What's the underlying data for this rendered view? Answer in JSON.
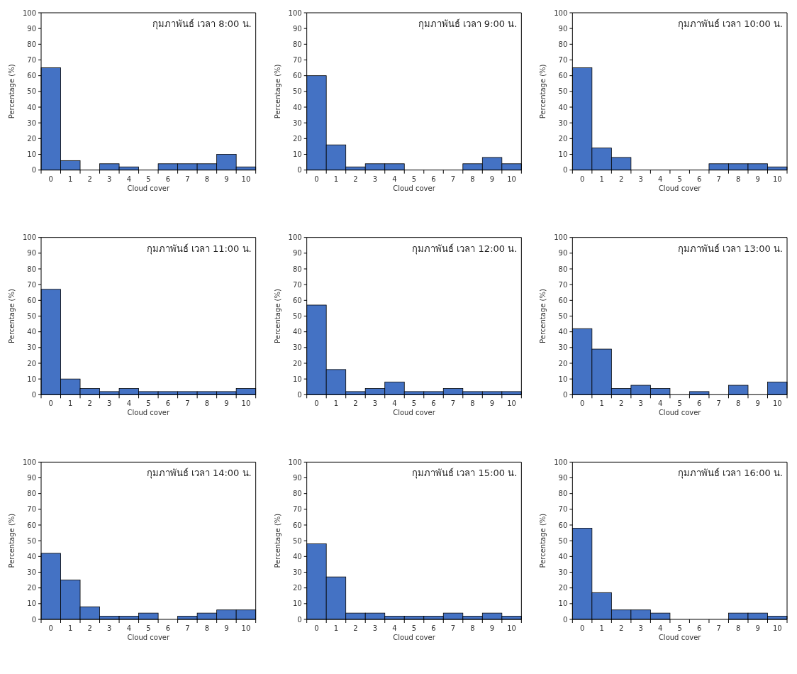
{
  "chart_data": [
    {
      "type": "bar",
      "title": "กุมภาพันธ์ เวลา 8:00 น.",
      "xlabel": "Cloud cover",
      "ylabel": "Percentage (%)",
      "categories": [
        "0",
        "1",
        "2",
        "3",
        "4",
        "5",
        "6",
        "7",
        "8",
        "9",
        "10"
      ],
      "values": [
        65,
        6,
        0,
        4,
        2,
        0,
        4,
        4,
        4,
        10,
        2
      ],
      "color": "#4472c4",
      "ylim": [
        0,
        100
      ],
      "yticks": [
        0,
        10,
        20,
        30,
        40,
        50,
        60,
        70,
        80,
        90,
        100
      ]
    },
    {
      "type": "bar",
      "title": "กุมภาพันธ์ เวลา 9:00 น.",
      "xlabel": "Cloud cover",
      "ylabel": "Percentage (%)",
      "categories": [
        "0",
        "1",
        "2",
        "3",
        "4",
        "5",
        "6",
        "7",
        "8",
        "9",
        "10"
      ],
      "values": [
        60,
        16,
        2,
        4,
        4,
        0,
        0,
        0,
        4,
        8,
        4
      ],
      "color": "#4472c4",
      "ylim": [
        0,
        100
      ],
      "yticks": [
        0,
        10,
        20,
        30,
        40,
        50,
        60,
        70,
        80,
        90,
        100
      ]
    },
    {
      "type": "bar",
      "title": "กุมภาพันธ์ เวลา 10:00 น.",
      "xlabel": "Cloud cover",
      "ylabel": "Percentage (%)",
      "categories": [
        "0",
        "1",
        "2",
        "3",
        "4",
        "5",
        "6",
        "7",
        "8",
        "9",
        "10"
      ],
      "values": [
        65,
        14,
        8,
        0,
        0,
        0,
        0,
        4,
        4,
        4,
        2
      ],
      "color": "#4472c4",
      "ylim": [
        0,
        100
      ],
      "yticks": [
        0,
        10,
        20,
        30,
        40,
        50,
        60,
        70,
        80,
        90,
        100
      ]
    },
    {
      "type": "bar",
      "title": "กุมภาพันธ์ เวลา 11:00 น.",
      "xlabel": "Cloud cover",
      "ylabel": "Percentage (%)",
      "categories": [
        "0",
        "1",
        "2",
        "3",
        "4",
        "5",
        "6",
        "7",
        "8",
        "9",
        "10"
      ],
      "values": [
        67,
        10,
        4,
        2,
        4,
        2,
        2,
        2,
        2,
        2,
        4
      ],
      "color": "#4472c4",
      "ylim": [
        0,
        100
      ],
      "yticks": [
        0,
        10,
        20,
        30,
        40,
        50,
        60,
        70,
        80,
        90,
        100
      ]
    },
    {
      "type": "bar",
      "title": "กุมภาพันธ์ เวลา 12:00 น.",
      "xlabel": "Cloud cover",
      "ylabel": "Percentage (%)",
      "categories": [
        "0",
        "1",
        "2",
        "3",
        "4",
        "5",
        "6",
        "7",
        "8",
        "9",
        "10"
      ],
      "values": [
        57,
        16,
        2,
        4,
        8,
        2,
        2,
        4,
        2,
        2,
        2
      ],
      "color": "#4472c4",
      "ylim": [
        0,
        100
      ],
      "yticks": [
        0,
        10,
        20,
        30,
        40,
        50,
        60,
        70,
        80,
        90,
        100
      ]
    },
    {
      "type": "bar",
      "title": "กุมภาพันธ์ เวลา 13:00 น.",
      "xlabel": "Cloud cover",
      "ylabel": "Percentage (%)",
      "categories": [
        "0",
        "1",
        "2",
        "3",
        "4",
        "5",
        "6",
        "7",
        "8",
        "9",
        "10"
      ],
      "values": [
        42,
        29,
        4,
        6,
        4,
        0,
        2,
        0,
        6,
        0,
        8
      ],
      "color": "#4472c4",
      "ylim": [
        0,
        100
      ],
      "yticks": [
        0,
        10,
        20,
        30,
        40,
        50,
        60,
        70,
        80,
        90,
        100
      ]
    },
    {
      "type": "bar",
      "title": "กุมภาพันธ์ เวลา 14:00 น.",
      "xlabel": "Cloud cover",
      "ylabel": "Percentage (%)",
      "categories": [
        "0",
        "1",
        "2",
        "3",
        "4",
        "5",
        "6",
        "7",
        "8",
        "9",
        "10"
      ],
      "values": [
        42,
        25,
        8,
        2,
        2,
        4,
        0,
        2,
        4,
        6,
        6
      ],
      "color": "#4472c4",
      "ylim": [
        0,
        100
      ],
      "yticks": [
        0,
        10,
        20,
        30,
        40,
        50,
        60,
        70,
        80,
        90,
        100
      ]
    },
    {
      "type": "bar",
      "title": "กุมภาพันธ์ เวลา 15:00 น.",
      "xlabel": "Cloud cover",
      "ylabel": "Percentage (%)",
      "categories": [
        "0",
        "1",
        "2",
        "3",
        "4",
        "5",
        "6",
        "7",
        "8",
        "9",
        "10"
      ],
      "values": [
        48,
        27,
        4,
        4,
        2,
        2,
        2,
        4,
        2,
        4,
        2
      ],
      "color": "#4472c4",
      "ylim": [
        0,
        100
      ],
      "yticks": [
        0,
        10,
        20,
        30,
        40,
        50,
        60,
        70,
        80,
        90,
        100
      ]
    },
    {
      "type": "bar",
      "title": "กุมภาพันธ์ เวลา 16:00 น.",
      "xlabel": "Cloud cover",
      "ylabel": "Percentage (%)",
      "categories": [
        "0",
        "1",
        "2",
        "3",
        "4",
        "5",
        "6",
        "7",
        "8",
        "9",
        "10"
      ],
      "values": [
        58,
        17,
        6,
        6,
        4,
        0,
        0,
        0,
        4,
        4,
        2
      ],
      "color": "#4472c4",
      "ylim": [
        0,
        100
      ],
      "yticks": [
        0,
        10,
        20,
        30,
        40,
        50,
        60,
        70,
        80,
        90,
        100
      ]
    }
  ]
}
